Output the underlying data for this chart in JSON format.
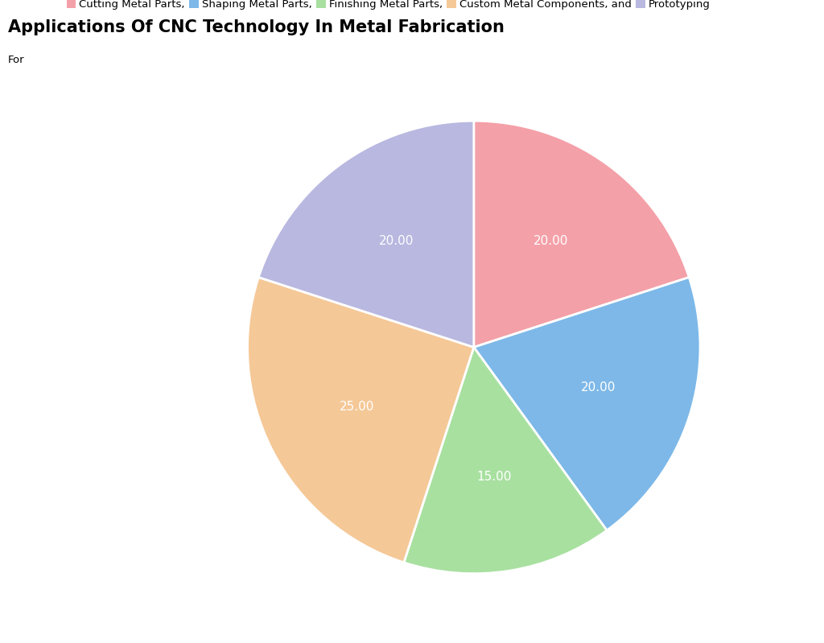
{
  "title": "Applications Of CNC Technology In Metal Fabrication",
  "legend_prefix": "For",
  "legend_labels": [
    "Cutting Metal Parts,",
    "Shaping Metal Parts,",
    "Finishing Metal Parts,",
    "Custom Metal Components, and",
    "Prototyping"
  ],
  "values": [
    20,
    20,
    15,
    25,
    20
  ],
  "colors": [
    "#F4A0A8",
    "#7DB8E8",
    "#A8E0A0",
    "#F5C897",
    "#B8B8E0"
  ],
  "startangle": 90,
  "background_color": "#ffffff",
  "title_fontsize": 15,
  "label_fontsize": 11,
  "legend_fontsize": 9.5
}
